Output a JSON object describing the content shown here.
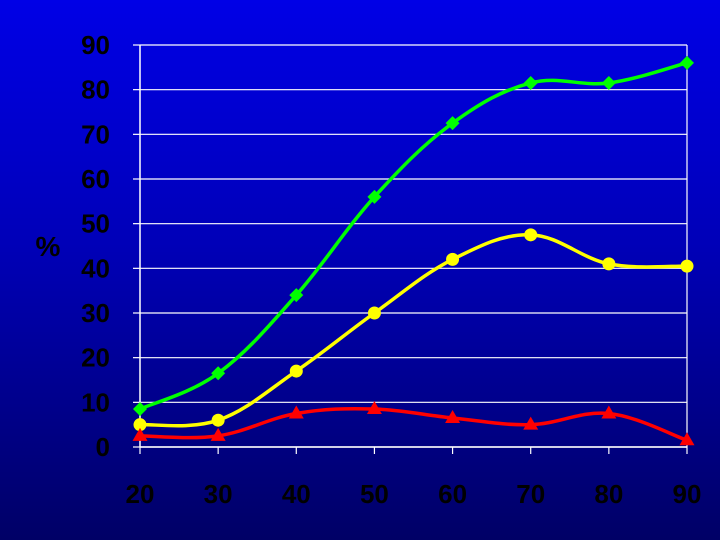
{
  "chart_data": {
    "type": "line",
    "title": "",
    "xlabel": "",
    "ylabel": "%",
    "x": [
      20,
      30,
      40,
      50,
      60,
      70,
      80,
      90
    ],
    "xlim": [
      20,
      90
    ],
    "ylim": [
      0,
      90
    ],
    "yticks": [
      0,
      10,
      20,
      30,
      40,
      50,
      60,
      70,
      80,
      90
    ],
    "xticks": [
      20,
      30,
      40,
      50,
      60,
      70,
      80,
      90
    ],
    "grid": "horizontal",
    "legend": "none",
    "series": [
      {
        "color": "#00ff00",
        "marker": "diamond",
        "values": [
          8.5,
          16.5,
          34,
          56,
          72.5,
          81.5,
          81.5,
          86
        ]
      },
      {
        "color": "#ffff00",
        "marker": "circle",
        "values": [
          5,
          6,
          17,
          30,
          42,
          47.5,
          41,
          40.5
        ]
      },
      {
        "color": "#ff0000",
        "marker": "triangle",
        "values": [
          2.5,
          2.5,
          7.5,
          8.5,
          6.5,
          5,
          7.5,
          1.5
        ]
      }
    ]
  },
  "colors": {
    "background_top": "#0000e6",
    "background_bottom": "#000066",
    "grid": "#ffffff"
  }
}
